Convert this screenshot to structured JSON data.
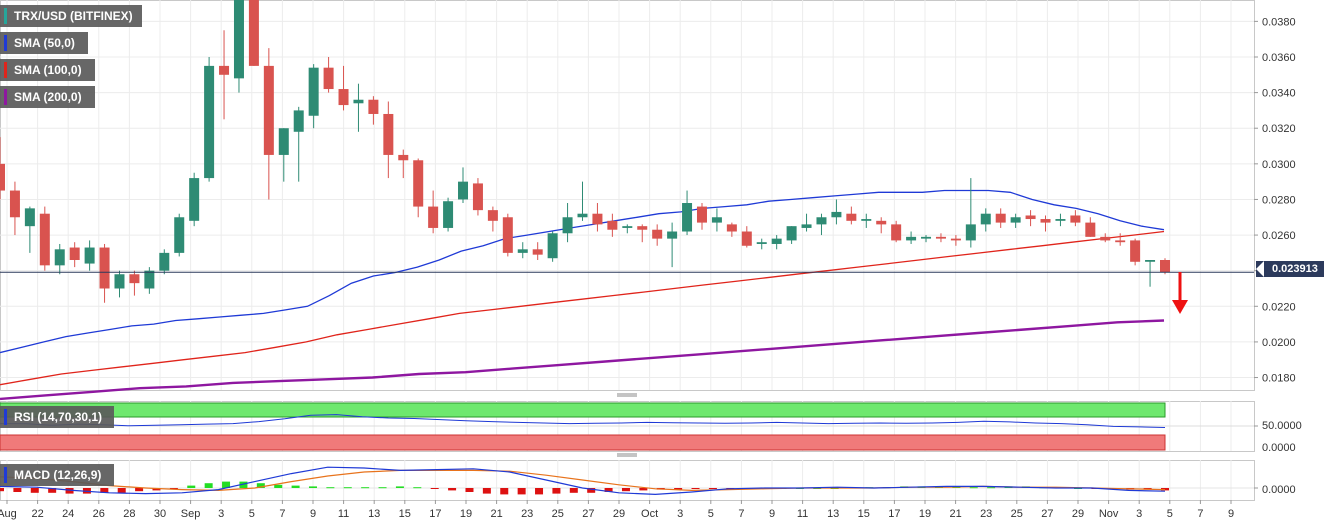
{
  "legend": {
    "symbol": {
      "label": "TRX/USD (BITFINEX)",
      "color": "#26a69a"
    },
    "sma50": {
      "label": "SMA (50,0)",
      "color": "#1f3ad6"
    },
    "sma100": {
      "label": "SMA (100,0)",
      "color": "#e0241b"
    },
    "sma200": {
      "label": "SMA (200,0)",
      "color": "#8e17a0"
    }
  },
  "last_price": "0.023913",
  "rsi": {
    "label": "RSI (14,70,30,1)",
    "level_label": "50.0000",
    "zero_label": "0.0000"
  },
  "macd": {
    "label": "MACD (12,26,9)",
    "zero_label": "0.0000"
  },
  "colors": {
    "up": "#2e8b74",
    "down": "#d9534f",
    "sma50": "#1f3ad6",
    "sma100": "#e0241b",
    "sma200": "#8e17a0",
    "arrow": "#ee1111"
  },
  "chart_data": {
    "type": "candlestick",
    "y_ticks": [
      "0.0380",
      "0.0360",
      "0.0340",
      "0.0320",
      "0.0300",
      "0.0280",
      "0.0260",
      "0.0240",
      "0.0220",
      "0.0200",
      "0.0180"
    ],
    "ylim": [
      0.0173,
      0.0392
    ],
    "x_ticks": [
      "Aug",
      "22",
      "24",
      "26",
      "28",
      "30",
      "Sep",
      "3",
      "5",
      "7",
      "9",
      "11",
      "13",
      "15",
      "17",
      "19",
      "21",
      "23",
      "25",
      "27",
      "29",
      "Oct",
      "3",
      "5",
      "7",
      "9",
      "11",
      "13",
      "15",
      "17",
      "19",
      "21",
      "23",
      "25",
      "27",
      "29",
      "Nov",
      "3",
      "5",
      "7",
      "9"
    ],
    "candles": [
      [
        0.03,
        0.0315,
        0.028,
        0.0285
      ],
      [
        0.0285,
        0.029,
        0.026,
        0.027
      ],
      [
        0.0265,
        0.0276,
        0.025,
        0.0275
      ],
      [
        0.0272,
        0.0276,
        0.024,
        0.0243
      ],
      [
        0.0243,
        0.0255,
        0.0238,
        0.0252
      ],
      [
        0.0253,
        0.0256,
        0.0242,
        0.0246
      ],
      [
        0.0244,
        0.0257,
        0.024,
        0.0253
      ],
      [
        0.0253,
        0.0255,
        0.0222,
        0.023
      ],
      [
        0.023,
        0.024,
        0.0225,
        0.0238
      ],
      [
        0.0238,
        0.024,
        0.0226,
        0.0233
      ],
      [
        0.023,
        0.0242,
        0.0227,
        0.024
      ],
      [
        0.024,
        0.0252,
        0.0238,
        0.025
      ],
      [
        0.025,
        0.0272,
        0.0248,
        0.027
      ],
      [
        0.0268,
        0.0295,
        0.0265,
        0.0292
      ],
      [
        0.0292,
        0.036,
        0.029,
        0.0355
      ],
      [
        0.0355,
        0.0375,
        0.0325,
        0.035
      ],
      [
        0.0348,
        0.0392,
        0.034,
        0.0392
      ],
      [
        0.0392,
        0.0392,
        0.0355,
        0.0355
      ],
      [
        0.0355,
        0.0365,
        0.028,
        0.0305
      ],
      [
        0.0305,
        0.032,
        0.029,
        0.032
      ],
      [
        0.0318,
        0.0332,
        0.029,
        0.033
      ],
      [
        0.0327,
        0.0356,
        0.032,
        0.0354
      ],
      [
        0.0354,
        0.036,
        0.034,
        0.0342
      ],
      [
        0.0342,
        0.0355,
        0.033,
        0.0333
      ],
      [
        0.0334,
        0.0345,
        0.0318,
        0.0336
      ],
      [
        0.0336,
        0.0338,
        0.0322,
        0.0328
      ],
      [
        0.0328,
        0.0335,
        0.0292,
        0.0305
      ],
      [
        0.0305,
        0.0308,
        0.0292,
        0.0302
      ],
      [
        0.0302,
        0.0303,
        0.027,
        0.0276
      ],
      [
        0.0276,
        0.0285,
        0.0261,
        0.0264
      ],
      [
        0.0264,
        0.0281,
        0.0262,
        0.0279
      ],
      [
        0.028,
        0.0298,
        0.0278,
        0.029
      ],
      [
        0.0289,
        0.0292,
        0.0271,
        0.0274
      ],
      [
        0.0274,
        0.0276,
        0.0262,
        0.0268
      ],
      [
        0.027,
        0.0272,
        0.0248,
        0.025
      ],
      [
        0.025,
        0.0256,
        0.0247,
        0.0252
      ],
      [
        0.0252,
        0.0256,
        0.0246,
        0.0249
      ],
      [
        0.0247,
        0.0262,
        0.0245,
        0.0261
      ],
      [
        0.0261,
        0.0278,
        0.0256,
        0.027
      ],
      [
        0.027,
        0.029,
        0.0268,
        0.0272
      ],
      [
        0.0272,
        0.0278,
        0.0262,
        0.0266
      ],
      [
        0.0268,
        0.0272,
        0.0259,
        0.0263
      ],
      [
        0.0264,
        0.0266,
        0.0261,
        0.0265
      ],
      [
        0.0265,
        0.0266,
        0.0256,
        0.0263
      ],
      [
        0.0263,
        0.0266,
        0.0254,
        0.0258
      ],
      [
        0.0258,
        0.0267,
        0.0242,
        0.0262
      ],
      [
        0.0262,
        0.0285,
        0.026,
        0.0278
      ],
      [
        0.0276,
        0.0278,
        0.0263,
        0.0267
      ],
      [
        0.0267,
        0.0275,
        0.0262,
        0.027
      ],
      [
        0.0266,
        0.0267,
        0.0259,
        0.0262
      ],
      [
        0.0262,
        0.0265,
        0.0253,
        0.0254
      ],
      [
        0.0255,
        0.0258,
        0.0252,
        0.0256
      ],
      [
        0.0255,
        0.026,
        0.0252,
        0.0258
      ],
      [
        0.0257,
        0.0265,
        0.0255,
        0.0265
      ],
      [
        0.0264,
        0.0272,
        0.0262,
        0.0266
      ],
      [
        0.0266,
        0.0272,
        0.026,
        0.027
      ],
      [
        0.027,
        0.028,
        0.0266,
        0.0273
      ],
      [
        0.0272,
        0.0276,
        0.0266,
        0.0268
      ],
      [
        0.0268,
        0.0272,
        0.0264,
        0.0269
      ],
      [
        0.0268,
        0.027,
        0.0261,
        0.0266
      ],
      [
        0.0266,
        0.0268,
        0.0256,
        0.0257
      ],
      [
        0.0257,
        0.0262,
        0.0255,
        0.0259
      ],
      [
        0.0258,
        0.026,
        0.0256,
        0.0259
      ],
      [
        0.0259,
        0.0261,
        0.0256,
        0.0258
      ],
      [
        0.0258,
        0.026,
        0.0254,
        0.0257
      ],
      [
        0.0257,
        0.0292,
        0.0253,
        0.0266
      ],
      [
        0.0266,
        0.0275,
        0.0262,
        0.0272
      ],
      [
        0.0272,
        0.0275,
        0.0264,
        0.0267
      ],
      [
        0.0267,
        0.0272,
        0.0264,
        0.027
      ],
      [
        0.0271,
        0.0274,
        0.0265,
        0.0269
      ],
      [
        0.0269,
        0.0271,
        0.0262,
        0.0267
      ],
      [
        0.0268,
        0.0272,
        0.0265,
        0.0269
      ],
      [
        0.0271,
        0.0274,
        0.0265,
        0.0267
      ],
      [
        0.0267,
        0.027,
        0.0259,
        0.0259
      ],
      [
        0.0259,
        0.0261,
        0.0256,
        0.0257
      ],
      [
        0.0257,
        0.0261,
        0.0254,
        0.0256
      ],
      [
        0.0257,
        0.0258,
        0.0243,
        0.0245
      ],
      [
        0.0245,
        0.0246,
        0.0231,
        0.0246
      ],
      [
        0.0246,
        0.0247,
        0.0238,
        0.0239
      ]
    ],
    "sma50": [
      0.0194,
      0.0197,
      0.02,
      0.0203,
      0.0205,
      0.0207,
      0.0209,
      0.021,
      0.0212,
      0.0213,
      0.0214,
      0.0215,
      0.0216,
      0.0218,
      0.022,
      0.0226,
      0.0233,
      0.0237,
      0.0239,
      0.0242,
      0.0246,
      0.0251,
      0.0254,
      0.0258,
      0.026,
      0.0262,
      0.0264,
      0.0266,
      0.0268,
      0.027,
      0.0272,
      0.0273,
      0.0275,
      0.0276,
      0.0277,
      0.0279,
      0.028,
      0.0281,
      0.0282,
      0.0283,
      0.0284,
      0.0284,
      0.0284,
      0.0285,
      0.0285,
      0.0285,
      0.0284,
      0.028,
      0.0277,
      0.0275,
      0.0272,
      0.0268,
      0.0265,
      0.0263
    ],
    "sma100": [
      0.0176,
      0.0179,
      0.0182,
      0.0184,
      0.0186,
      0.0188,
      0.019,
      0.0192,
      0.0194,
      0.0197,
      0.02,
      0.0204,
      0.0207,
      0.021,
      0.0213,
      0.0216,
      0.0218,
      0.022,
      0.0222,
      0.0224,
      0.0226,
      0.0228,
      0.023,
      0.0232,
      0.0234,
      0.0236,
      0.0238,
      0.024,
      0.0242,
      0.0244,
      0.0246,
      0.0248,
      0.025,
      0.0252,
      0.0254,
      0.0256,
      0.0258,
      0.026,
      0.0262
    ],
    "sma200": [
      0.0168,
      0.017,
      0.0172,
      0.0174,
      0.0175,
      0.0177,
      0.0178,
      0.0179,
      0.018,
      0.0182,
      0.0183,
      0.0185,
      0.0187,
      0.0189,
      0.0191,
      0.0193,
      0.0195,
      0.0197,
      0.0199,
      0.0201,
      0.0203,
      0.0205,
      0.0207,
      0.0209,
      0.0211,
      0.0212
    ],
    "rsi_ylim": [
      0,
      100
    ],
    "rsi_overbought": 70,
    "rsi_oversold": 30,
    "rsi": [
      48,
      47,
      42,
      46,
      44,
      40,
      42,
      44,
      46,
      48,
      55,
      65,
      78,
      80,
      72,
      68,
      66,
      62,
      58,
      55,
      52,
      50,
      48,
      49,
      50,
      52,
      51,
      50,
      49,
      50,
      52,
      50,
      48,
      49,
      50,
      49,
      50,
      52,
      56,
      54,
      50,
      48,
      44,
      38,
      36,
      34
    ],
    "macd_ylim": [
      -0.0015,
      0.0035
    ],
    "macd_line": [
      0.0002,
      0.0001,
      -0.0003,
      -0.0006,
      -0.0007,
      -0.0006,
      -0.0002,
      0.0008,
      0.0018,
      0.0026,
      0.0025,
      0.0022,
      0.0023,
      0.0024,
      0.002,
      0.001,
      0.0,
      -0.0006,
      -0.0008,
      -0.0005,
      -0.0001,
      0.0,
      0.0,
      0.0001,
      0.0,
      0.0001,
      0.0002,
      0.0002,
      0.0001,
      0.0,
      0.0,
      -0.0003,
      -0.0004
    ],
    "macd_signal": [
      0.0014,
      0.0012,
      0.0008,
      0.0003,
      0.0,
      -0.0002,
      -0.0003,
      0.0,
      0.0008,
      0.0015,
      0.002,
      0.0022,
      0.0022,
      0.0022,
      0.0021,
      0.0016,
      0.001,
      0.0004,
      -0.0001,
      -0.0003,
      -0.0002,
      -0.0001,
      0.0,
      0.0,
      0.0,
      0.0001,
      0.0001,
      0.0002,
      0.0001,
      0.0001,
      0.0,
      -0.0001,
      -0.0002
    ],
    "macd_hist": [
      -0.0004,
      -0.0005,
      -0.0006,
      -0.0006,
      -0.0007,
      -0.0007,
      -0.0006,
      -0.0006,
      -0.0004,
      -0.0003,
      -0.0001,
      0.0003,
      0.0006,
      0.0008,
      0.0008,
      0.0006,
      0.0004,
      0.0003,
      0.0002,
      0.0001,
      0.0001,
      0.0001,
      0.0001,
      0.0002,
      0.0001,
      -0.0001,
      -0.0003,
      -0.0005,
      -0.0007,
      -0.0008,
      -0.0008,
      -0.0008,
      -0.0007,
      -0.0006,
      -0.0006,
      -0.0005,
      -0.0004,
      -0.0003,
      -0.0002,
      -0.0002,
      -0.0001,
      -0.0001,
      -0.0001,
      -0.0001,
      -0.0001,
      0.0,
      0.0,
      0.0,
      0.0,
      0.0001,
      0.0001,
      0.0001,
      0.0002,
      0.0002,
      0.0002,
      0.0002,
      0.0001,
      0.0001,
      0.0002,
      0.0002,
      0.0001,
      0.0001,
      0.0,
      -0.0001,
      -0.0001,
      -0.0002,
      -0.0002,
      -0.0003
    ]
  }
}
